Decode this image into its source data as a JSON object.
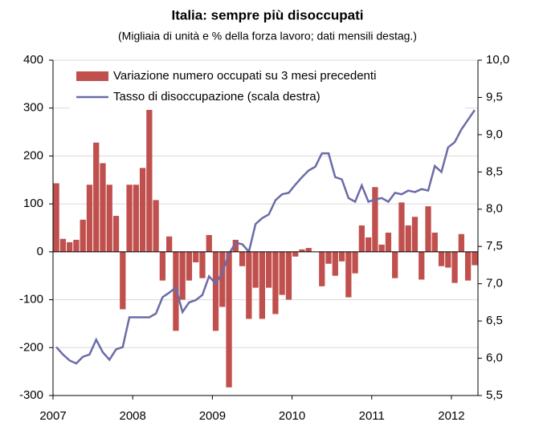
{
  "chart_data": {
    "type": "bar-line",
    "title": "Italia: sempre più disoccupati",
    "subtitle": "(Migliaia di unità e % della forza lavoro; dati mensili destag.)",
    "categories": [
      "2007",
      null,
      null,
      null,
      null,
      null,
      null,
      null,
      null,
      null,
      null,
      null,
      "2008",
      null,
      null,
      null,
      null,
      null,
      null,
      null,
      null,
      null,
      null,
      null,
      "2009",
      null,
      null,
      null,
      null,
      null,
      null,
      null,
      null,
      null,
      null,
      null,
      "2010",
      null,
      null,
      null,
      null,
      null,
      null,
      null,
      null,
      null,
      null,
      null,
      "2011",
      null,
      null,
      null,
      null,
      null,
      null,
      null,
      null,
      null,
      null,
      null,
      "2012",
      null,
      null,
      null
    ],
    "series": [
      {
        "name": "Variazione numero occupati su 3 mesi precedenti",
        "color": "#c0504d",
        "kind": "bar",
        "values": [
          143,
          27,
          20,
          25,
          67,
          140,
          228,
          185,
          140,
          75,
          -120,
          140,
          140,
          175,
          297,
          108,
          -60,
          32,
          -165,
          -100,
          -60,
          -22,
          -55,
          35,
          -165,
          -115,
          -283,
          25,
          -30,
          -140,
          -75,
          -140,
          -75,
          -130,
          -90,
          -100,
          -10,
          5,
          8,
          0,
          -72,
          -25,
          -50,
          -20,
          -95,
          -45,
          55,
          30,
          135,
          15,
          40,
          -55,
          103,
          55,
          73,
          -58,
          95,
          40,
          -30,
          -33,
          -65,
          37,
          -60,
          -28
        ]
      },
      {
        "name": "Tasso di disoccupazione (scala destra)",
        "color": "#6b6ba8",
        "kind": "line",
        "axis": "y2",
        "values": [
          6.15,
          6.05,
          5.97,
          5.93,
          6.02,
          6.05,
          6.25,
          6.08,
          5.98,
          6.12,
          6.15,
          6.55,
          6.55,
          6.55,
          6.55,
          6.6,
          6.82,
          6.88,
          6.95,
          6.62,
          6.75,
          6.78,
          6.85,
          7.1,
          7.0,
          7.15,
          7.4,
          7.55,
          7.53,
          7.43,
          7.8,
          7.88,
          7.93,
          8.12,
          8.2,
          8.22,
          8.33,
          8.43,
          8.52,
          8.57,
          8.75,
          8.75,
          8.43,
          8.4,
          8.15,
          8.1,
          8.32,
          8.1,
          8.13,
          8.15,
          8.1,
          8.22,
          8.2,
          8.25,
          8.23,
          8.27,
          8.25,
          8.58,
          8.5,
          8.83,
          8.9,
          9.07,
          9.2,
          9.33
        ]
      }
    ],
    "ylim": [
      -300,
      400
    ],
    "yticks": [
      -300,
      -200,
      -100,
      0,
      100,
      200,
      300,
      400
    ],
    "y2lim": [
      5.5,
      10.0
    ],
    "y2ticks": [
      {
        "value": 5.5,
        "label": "5,5"
      },
      {
        "value": 6.0,
        "label": "6,0"
      },
      {
        "value": 6.5,
        "label": "6,5"
      },
      {
        "value": 7.0,
        "label": "7,0"
      },
      {
        "value": 7.5,
        "label": "7,5"
      },
      {
        "value": 8.0,
        "label": "8,0"
      },
      {
        "value": 8.5,
        "label": "8,5"
      },
      {
        "value": 9.0,
        "label": "9,0"
      },
      {
        "value": 9.5,
        "label": "9,5"
      },
      {
        "value": 10.0,
        "label": "10,0"
      }
    ],
    "grid": true,
    "legend": "upper center"
  }
}
